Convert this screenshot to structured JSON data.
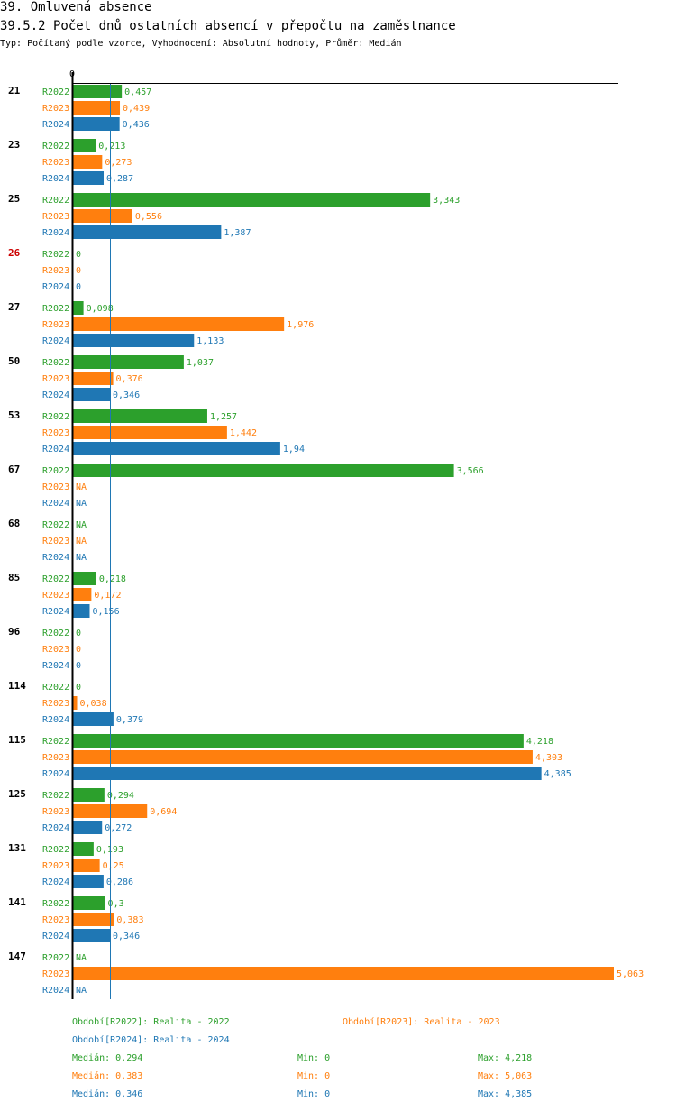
{
  "header": {
    "title": "39. Omluvená absence",
    "subtitle": "39.5.2 Počet dnů ostatních absencí v přepočtu na zaměstnance",
    "typ": "Typ: Počítaný podle vzorce, Vyhodnocení: Absolutní hodnoty, Průměr: Medián"
  },
  "colors": {
    "R2022": "#2ca02c",
    "R2023": "#ff7f0e",
    "R2024": "#1f77b4",
    "highlight": "#cc0000"
  },
  "chart_data": {
    "type": "bar",
    "orientation": "horizontal",
    "axis_zero_label": "0",
    "xlim": [
      0,
      5.063
    ],
    "series_names": [
      "R2022",
      "R2023",
      "R2024"
    ],
    "medians": [
      0.294,
      0.383,
      0.346
    ],
    "groups": [
      {
        "label": "21",
        "highlight": false,
        "values": [
          0.457,
          0.439,
          0.436
        ],
        "labels": [
          "0,457",
          "0,439",
          "0,436"
        ]
      },
      {
        "label": "23",
        "highlight": false,
        "values": [
          0.213,
          0.273,
          0.287
        ],
        "labels": [
          "0,213",
          "0,273",
          "0,287"
        ]
      },
      {
        "label": "25",
        "highlight": false,
        "values": [
          3.343,
          0.556,
          1.387
        ],
        "labels": [
          "3,343",
          "0,556",
          "1,387"
        ]
      },
      {
        "label": "26",
        "highlight": true,
        "values": [
          0,
          0,
          0
        ],
        "labels": [
          "0",
          "0",
          "0"
        ]
      },
      {
        "label": "27",
        "highlight": false,
        "values": [
          0.098,
          1.976,
          1.133
        ],
        "labels": [
          "0,098",
          "1,976",
          "1,133"
        ]
      },
      {
        "label": "50",
        "highlight": false,
        "values": [
          1.037,
          0.376,
          0.346
        ],
        "labels": [
          "1,037",
          "0,376",
          "0,346"
        ]
      },
      {
        "label": "53",
        "highlight": false,
        "values": [
          1.257,
          1.442,
          1.94
        ],
        "labels": [
          "1,257",
          "1,442",
          "1,94"
        ]
      },
      {
        "label": "67",
        "highlight": false,
        "values": [
          3.566,
          null,
          null
        ],
        "labels": [
          "3,566",
          "NA",
          "NA"
        ]
      },
      {
        "label": "68",
        "highlight": false,
        "values": [
          null,
          null,
          null
        ],
        "labels": [
          "NA",
          "NA",
          "NA"
        ]
      },
      {
        "label": "85",
        "highlight": false,
        "values": [
          0.218,
          0.172,
          0.156
        ],
        "labels": [
          "0,218",
          "0,172",
          "0,156"
        ]
      },
      {
        "label": "96",
        "highlight": false,
        "values": [
          0,
          0,
          0
        ],
        "labels": [
          "0",
          "0",
          "0"
        ]
      },
      {
        "label": "114",
        "highlight": false,
        "values": [
          0,
          0.038,
          0.379
        ],
        "labels": [
          "0",
          "0,038",
          "0,379"
        ]
      },
      {
        "label": "115",
        "highlight": false,
        "values": [
          4.218,
          4.303,
          4.385
        ],
        "labels": [
          "4,218",
          "4,303",
          "4,385"
        ]
      },
      {
        "label": "125",
        "highlight": false,
        "values": [
          0.294,
          0.694,
          0.272
        ],
        "labels": [
          "0,294",
          "0,694",
          "0,272"
        ]
      },
      {
        "label": "131",
        "highlight": false,
        "values": [
          0.193,
          0.25,
          0.286
        ],
        "labels": [
          "0,193",
          "0,25",
          "0,286"
        ]
      },
      {
        "label": "141",
        "highlight": false,
        "values": [
          0.3,
          0.383,
          0.346
        ],
        "labels": [
          "0,3",
          "0,383",
          "0,346"
        ]
      },
      {
        "label": "147",
        "highlight": false,
        "values": [
          null,
          5.063,
          null
        ],
        "labels": [
          "NA",
          "5,063",
          "NA"
        ]
      }
    ]
  },
  "legend": {
    "r2022": "Období[R2022]: Realita - 2022",
    "r2023": "Období[R2023]: Realita - 2023",
    "r2024": "Období[R2024]: Realita - 2024",
    "stats": [
      {
        "median": "Medián: 0,294",
        "min": "Min: 0",
        "max": "Max: 4,218"
      },
      {
        "median": "Medián: 0,383",
        "min": "Min: 0",
        "max": "Max: 5,063"
      },
      {
        "median": "Medián: 0,346",
        "min": "Min: 0",
        "max": "Max: 4,385"
      }
    ]
  }
}
